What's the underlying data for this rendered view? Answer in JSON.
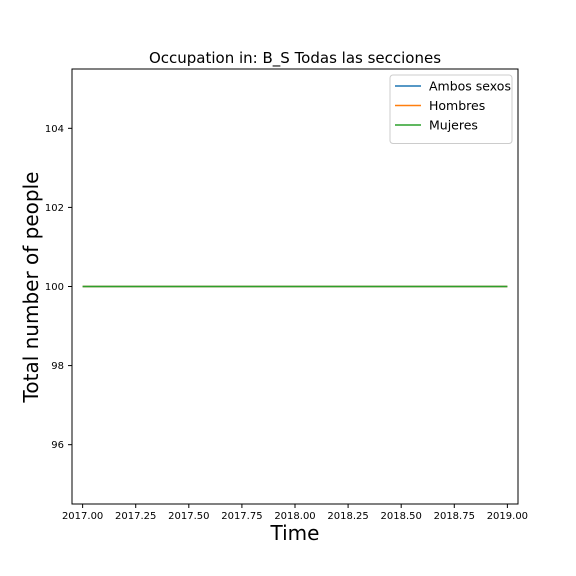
{
  "chart_data": {
    "type": "line",
    "title": "Occupation in: B_S Todas las secciones",
    "xlabel": "Time",
    "ylabel": "Total number of people",
    "xlim": [
      2016.95,
      2019.05
    ],
    "ylim": [
      94.5,
      105.5
    ],
    "xticks": [
      2017.0,
      2017.25,
      2017.5,
      2017.75,
      2018.0,
      2018.25,
      2018.5,
      2018.75,
      2019.0
    ],
    "xtick_labels": [
      "2017.00",
      "2017.25",
      "2017.50",
      "2017.75",
      "2018.00",
      "2018.25",
      "2018.50",
      "2018.75",
      "2019.00"
    ],
    "yticks": [
      96,
      98,
      100,
      102,
      104
    ],
    "ytick_labels": [
      "96",
      "98",
      "100",
      "102",
      "104"
    ],
    "grid": false,
    "legend_position": "top-right",
    "x": [
      2017.0,
      2019.0
    ],
    "series": [
      {
        "name": "Ambos sexos",
        "color": "#1f77b4",
        "values": [
          100,
          100
        ]
      },
      {
        "name": "Hombres",
        "color": "#ff7f0e",
        "values": [
          100,
          100
        ]
      },
      {
        "name": "Mujeres",
        "color": "#2ca02c",
        "values": [
          100,
          100
        ]
      }
    ]
  }
}
